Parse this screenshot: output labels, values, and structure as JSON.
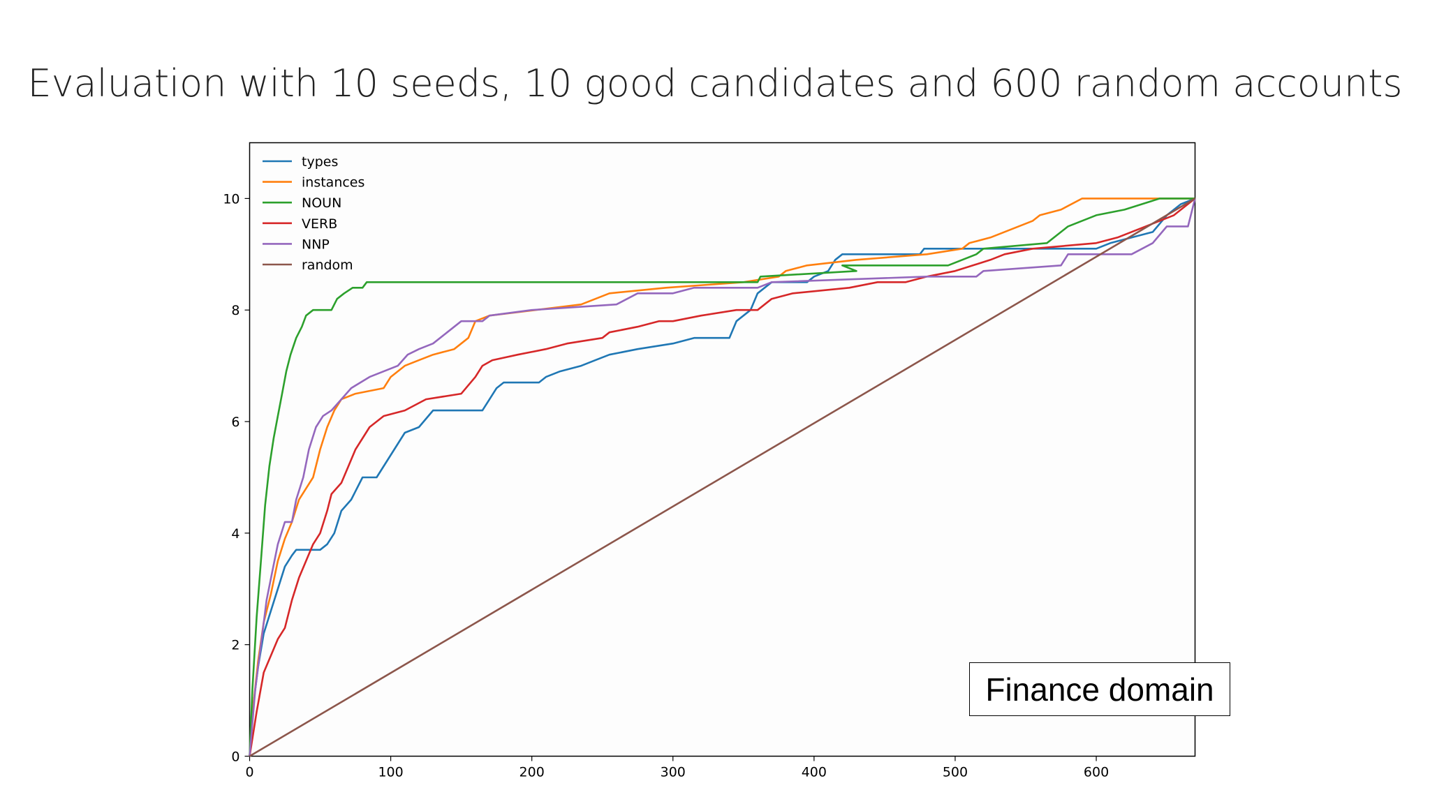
{
  "title": "Evaluation with 10 seeds, 10 good candidates and 600 random accounts",
  "annotation": "Finance domain",
  "chart_data": {
    "type": "line",
    "title": "",
    "xlabel": "",
    "ylabel": "",
    "xlim": [
      0,
      670
    ],
    "ylim": [
      0,
      11
    ],
    "xticks": [
      0,
      100,
      200,
      300,
      400,
      500,
      600
    ],
    "yticks": [
      0,
      2,
      4,
      6,
      8,
      10
    ],
    "grid": false,
    "legend_position": "top-left",
    "series": [
      {
        "name": "types",
        "color": "#1f77b4",
        "points": [
          [
            0,
            0
          ],
          [
            3,
            1
          ],
          [
            6,
            1.6
          ],
          [
            10,
            2.2
          ],
          [
            15,
            2.6
          ],
          [
            20,
            3.0
          ],
          [
            25,
            3.4
          ],
          [
            30,
            3.6
          ],
          [
            33,
            3.7
          ],
          [
            50,
            3.7
          ],
          [
            55,
            3.8
          ],
          [
            60,
            4.0
          ],
          [
            65,
            4.4
          ],
          [
            72,
            4.6
          ],
          [
            80,
            5.0
          ],
          [
            90,
            5.0
          ],
          [
            95,
            5.2
          ],
          [
            100,
            5.4
          ],
          [
            105,
            5.6
          ],
          [
            110,
            5.8
          ],
          [
            120,
            5.9
          ],
          [
            130,
            6.2
          ],
          [
            165,
            6.2
          ],
          [
            170,
            6.4
          ],
          [
            175,
            6.6
          ],
          [
            180,
            6.7
          ],
          [
            205,
            6.7
          ],
          [
            210,
            6.8
          ],
          [
            220,
            6.9
          ],
          [
            235,
            7.0
          ],
          [
            245,
            7.1
          ],
          [
            255,
            7.2
          ],
          [
            275,
            7.3
          ],
          [
            300,
            7.4
          ],
          [
            315,
            7.5
          ],
          [
            340,
            7.5
          ],
          [
            345,
            7.8
          ],
          [
            355,
            8.0
          ],
          [
            360,
            8.3
          ],
          [
            365,
            8.4
          ],
          [
            370,
            8.5
          ],
          [
            395,
            8.5
          ],
          [
            400,
            8.6
          ],
          [
            410,
            8.7
          ],
          [
            415,
            8.9
          ],
          [
            420,
            9.0
          ],
          [
            475,
            9.0
          ],
          [
            478,
            9.1
          ],
          [
            520,
            9.1
          ],
          [
            600,
            9.1
          ],
          [
            610,
            9.2
          ],
          [
            640,
            9.4
          ],
          [
            650,
            9.7
          ],
          [
            660,
            9.9
          ],
          [
            670,
            10
          ]
        ]
      },
      {
        "name": "instances",
        "color": "#ff7f0e",
        "points": [
          [
            0,
            0
          ],
          [
            3,
            1
          ],
          [
            6,
            1.7
          ],
          [
            10,
            2.4
          ],
          [
            15,
            2.9
          ],
          [
            20,
            3.5
          ],
          [
            25,
            3.9
          ],
          [
            30,
            4.2
          ],
          [
            35,
            4.6
          ],
          [
            40,
            4.8
          ],
          [
            45,
            5.0
          ],
          [
            50,
            5.5
          ],
          [
            55,
            5.9
          ],
          [
            60,
            6.2
          ],
          [
            65,
            6.4
          ],
          [
            75,
            6.5
          ],
          [
            95,
            6.6
          ],
          [
            100,
            6.8
          ],
          [
            105,
            6.9
          ],
          [
            110,
            7.0
          ],
          [
            120,
            7.1
          ],
          [
            130,
            7.2
          ],
          [
            145,
            7.3
          ],
          [
            155,
            7.5
          ],
          [
            160,
            7.8
          ],
          [
            170,
            7.9
          ],
          [
            235,
            8.1
          ],
          [
            255,
            8.3
          ],
          [
            295,
            8.4
          ],
          [
            350,
            8.5
          ],
          [
            375,
            8.6
          ],
          [
            380,
            8.7
          ],
          [
            395,
            8.8
          ],
          [
            430,
            8.9
          ],
          [
            480,
            9.0
          ],
          [
            505,
            9.1
          ],
          [
            510,
            9.2
          ],
          [
            525,
            9.3
          ],
          [
            555,
            9.6
          ],
          [
            560,
            9.7
          ],
          [
            575,
            9.8
          ],
          [
            590,
            10
          ],
          [
            670,
            10
          ]
        ]
      },
      {
        "name": "NOUN",
        "color": "#2ca02c",
        "points": [
          [
            0,
            0
          ],
          [
            2,
            1.2
          ],
          [
            5,
            2.5
          ],
          [
            8,
            3.5
          ],
          [
            11,
            4.5
          ],
          [
            14,
            5.2
          ],
          [
            17,
            5.7
          ],
          [
            20,
            6.1
          ],
          [
            23,
            6.5
          ],
          [
            26,
            6.9
          ],
          [
            29,
            7.2
          ],
          [
            33,
            7.5
          ],
          [
            37,
            7.7
          ],
          [
            40,
            7.9
          ],
          [
            45,
            8.0
          ],
          [
            58,
            8.0
          ],
          [
            62,
            8.2
          ],
          [
            67,
            8.3
          ],
          [
            73,
            8.4
          ],
          [
            80,
            8.4
          ],
          [
            83,
            8.5
          ],
          [
            360,
            8.5
          ],
          [
            362,
            8.6
          ],
          [
            430,
            8.7
          ],
          [
            420,
            8.8
          ],
          [
            495,
            8.8
          ],
          [
            515,
            9.0
          ],
          [
            520,
            9.1
          ],
          [
            565,
            9.2
          ],
          [
            580,
            9.5
          ],
          [
            600,
            9.7
          ],
          [
            620,
            9.8
          ],
          [
            645,
            10
          ],
          [
            670,
            10
          ]
        ]
      },
      {
        "name": "VERB",
        "color": "#d62728",
        "points": [
          [
            0,
            0
          ],
          [
            5,
            0.8
          ],
          [
            10,
            1.5
          ],
          [
            15,
            1.8
          ],
          [
            20,
            2.1
          ],
          [
            25,
            2.3
          ],
          [
            30,
            2.8
          ],
          [
            35,
            3.2
          ],
          [
            40,
            3.5
          ],
          [
            45,
            3.8
          ],
          [
            50,
            4.0
          ],
          [
            55,
            4.4
          ],
          [
            58,
            4.7
          ],
          [
            65,
            4.9
          ],
          [
            70,
            5.2
          ],
          [
            75,
            5.5
          ],
          [
            80,
            5.7
          ],
          [
            85,
            5.9
          ],
          [
            95,
            6.1
          ],
          [
            110,
            6.2
          ],
          [
            125,
            6.4
          ],
          [
            150,
            6.5
          ],
          [
            160,
            6.8
          ],
          [
            165,
            7.0
          ],
          [
            172,
            7.1
          ],
          [
            190,
            7.2
          ],
          [
            210,
            7.3
          ],
          [
            225,
            7.4
          ],
          [
            250,
            7.5
          ],
          [
            255,
            7.6
          ],
          [
            275,
            7.7
          ],
          [
            290,
            7.8
          ],
          [
            300,
            7.8
          ],
          [
            320,
            7.9
          ],
          [
            345,
            8.0
          ],
          [
            360,
            8.0
          ],
          [
            365,
            8.1
          ],
          [
            370,
            8.2
          ],
          [
            385,
            8.3
          ],
          [
            425,
            8.4
          ],
          [
            445,
            8.5
          ],
          [
            465,
            8.5
          ],
          [
            480,
            8.6
          ],
          [
            500,
            8.7
          ],
          [
            525,
            8.9
          ],
          [
            535,
            9.0
          ],
          [
            555,
            9.1
          ],
          [
            600,
            9.2
          ],
          [
            615,
            9.3
          ],
          [
            635,
            9.5
          ],
          [
            655,
            9.7
          ],
          [
            670,
            10
          ]
        ]
      },
      {
        "name": "NNP",
        "color": "#9467bd",
        "points": [
          [
            0,
            0
          ],
          [
            4,
            1.2
          ],
          [
            8,
            2.0
          ],
          [
            12,
            2.8
          ],
          [
            16,
            3.3
          ],
          [
            20,
            3.8
          ],
          [
            25,
            4.2
          ],
          [
            30,
            4.2
          ],
          [
            33,
            4.6
          ],
          [
            38,
            5.0
          ],
          [
            42,
            5.5
          ],
          [
            47,
            5.9
          ],
          [
            52,
            6.1
          ],
          [
            58,
            6.2
          ],
          [
            65,
            6.4
          ],
          [
            72,
            6.6
          ],
          [
            85,
            6.8
          ],
          [
            95,
            6.9
          ],
          [
            105,
            7.0
          ],
          [
            112,
            7.2
          ],
          [
            120,
            7.3
          ],
          [
            130,
            7.4
          ],
          [
            140,
            7.6
          ],
          [
            145,
            7.7
          ],
          [
            150,
            7.8
          ],
          [
            165,
            7.8
          ],
          [
            170,
            7.9
          ],
          [
            200,
            8.0
          ],
          [
            260,
            8.1
          ],
          [
            275,
            8.3
          ],
          [
            300,
            8.3
          ],
          [
            315,
            8.4
          ],
          [
            360,
            8.4
          ],
          [
            370,
            8.5
          ],
          [
            480,
            8.6
          ],
          [
            515,
            8.6
          ],
          [
            520,
            8.7
          ],
          [
            575,
            8.8
          ],
          [
            580,
            9.0
          ],
          [
            625,
            9.0
          ],
          [
            640,
            9.2
          ],
          [
            650,
            9.5
          ],
          [
            665,
            9.5
          ],
          [
            670,
            10
          ]
        ]
      },
      {
        "name": "random",
        "color": "#8c564b",
        "points": [
          [
            0,
            0
          ],
          [
            670,
            10
          ]
        ]
      }
    ]
  }
}
